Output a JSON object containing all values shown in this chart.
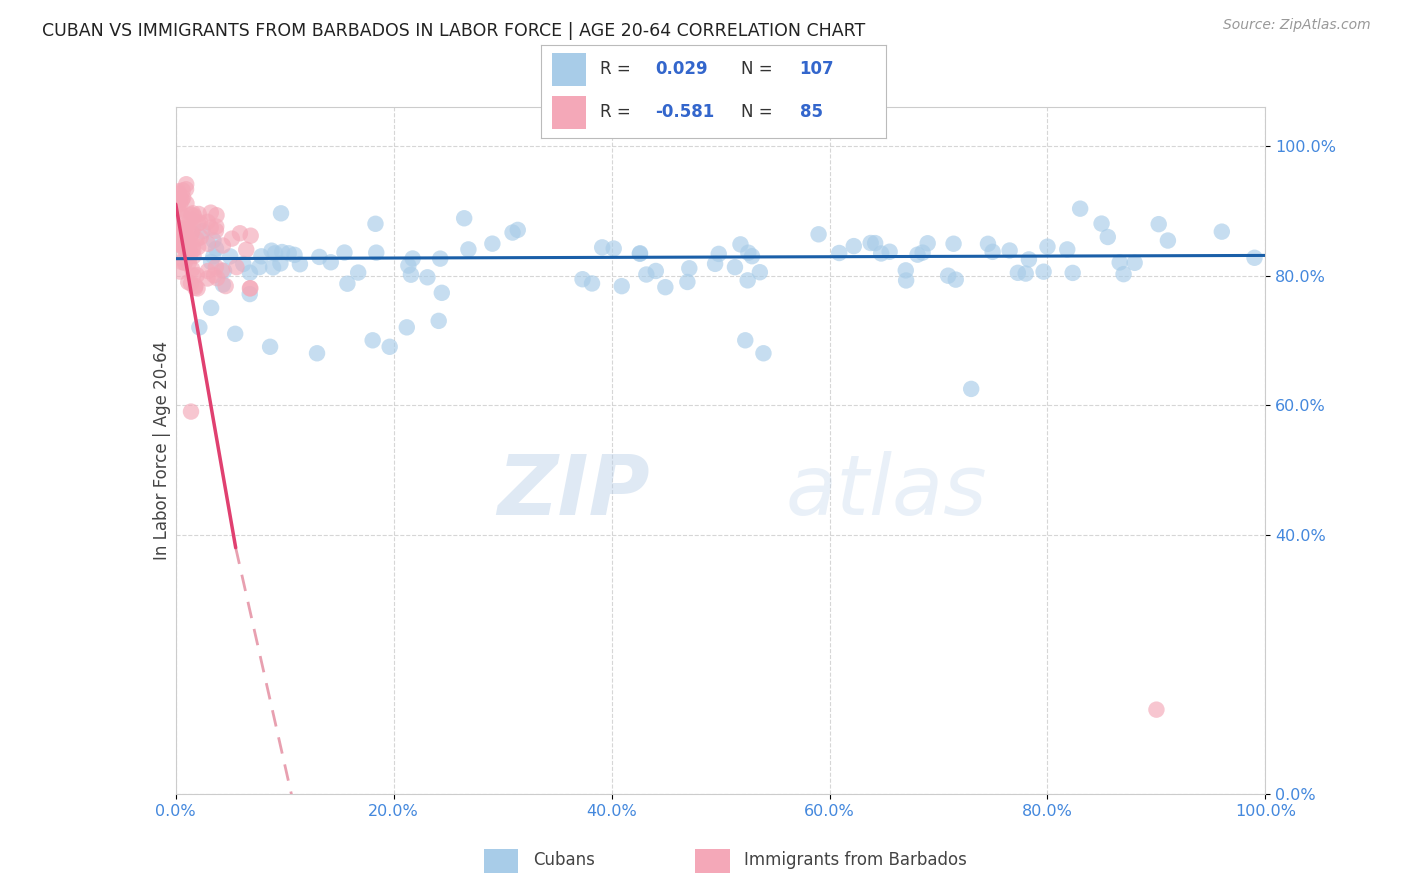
{
  "title": "CUBAN VS IMMIGRANTS FROM BARBADOS IN LABOR FORCE | AGE 20-64 CORRELATION CHART",
  "source": "Source: ZipAtlas.com",
  "ylabel": "In Labor Force | Age 20-64",
  "background_color": "#ffffff",
  "watermark_zip": "ZIP",
  "watermark_atlas": "atlas",
  "blue_color": "#a8cce8",
  "pink_color": "#f4a8b8",
  "blue_line_color": "#1a5fa8",
  "pink_line_color": "#e04070",
  "pink_dash_color": "#e8a0b0",
  "axis_tick_color": "#4488dd",
  "title_color": "#222222",
  "grid_color": "#cccccc",
  "source_color": "#999999",
  "ytick_labels": [
    "100.0%",
    "80.0%",
    "60.0%",
    "40.0%",
    "0.0%"
  ],
  "ytick_values": [
    1.0,
    0.8,
    0.6,
    0.4,
    0.0
  ],
  "xtick_labels": [
    "0.0%",
    "20.0%",
    "40.0%",
    "60.0%",
    "80.0%",
    "100.0%"
  ],
  "xtick_values": [
    0.0,
    0.2,
    0.4,
    0.6,
    0.8,
    1.0
  ],
  "xlim": [
    0.0,
    1.0
  ],
  "ylim": [
    0.0,
    1.06
  ]
}
